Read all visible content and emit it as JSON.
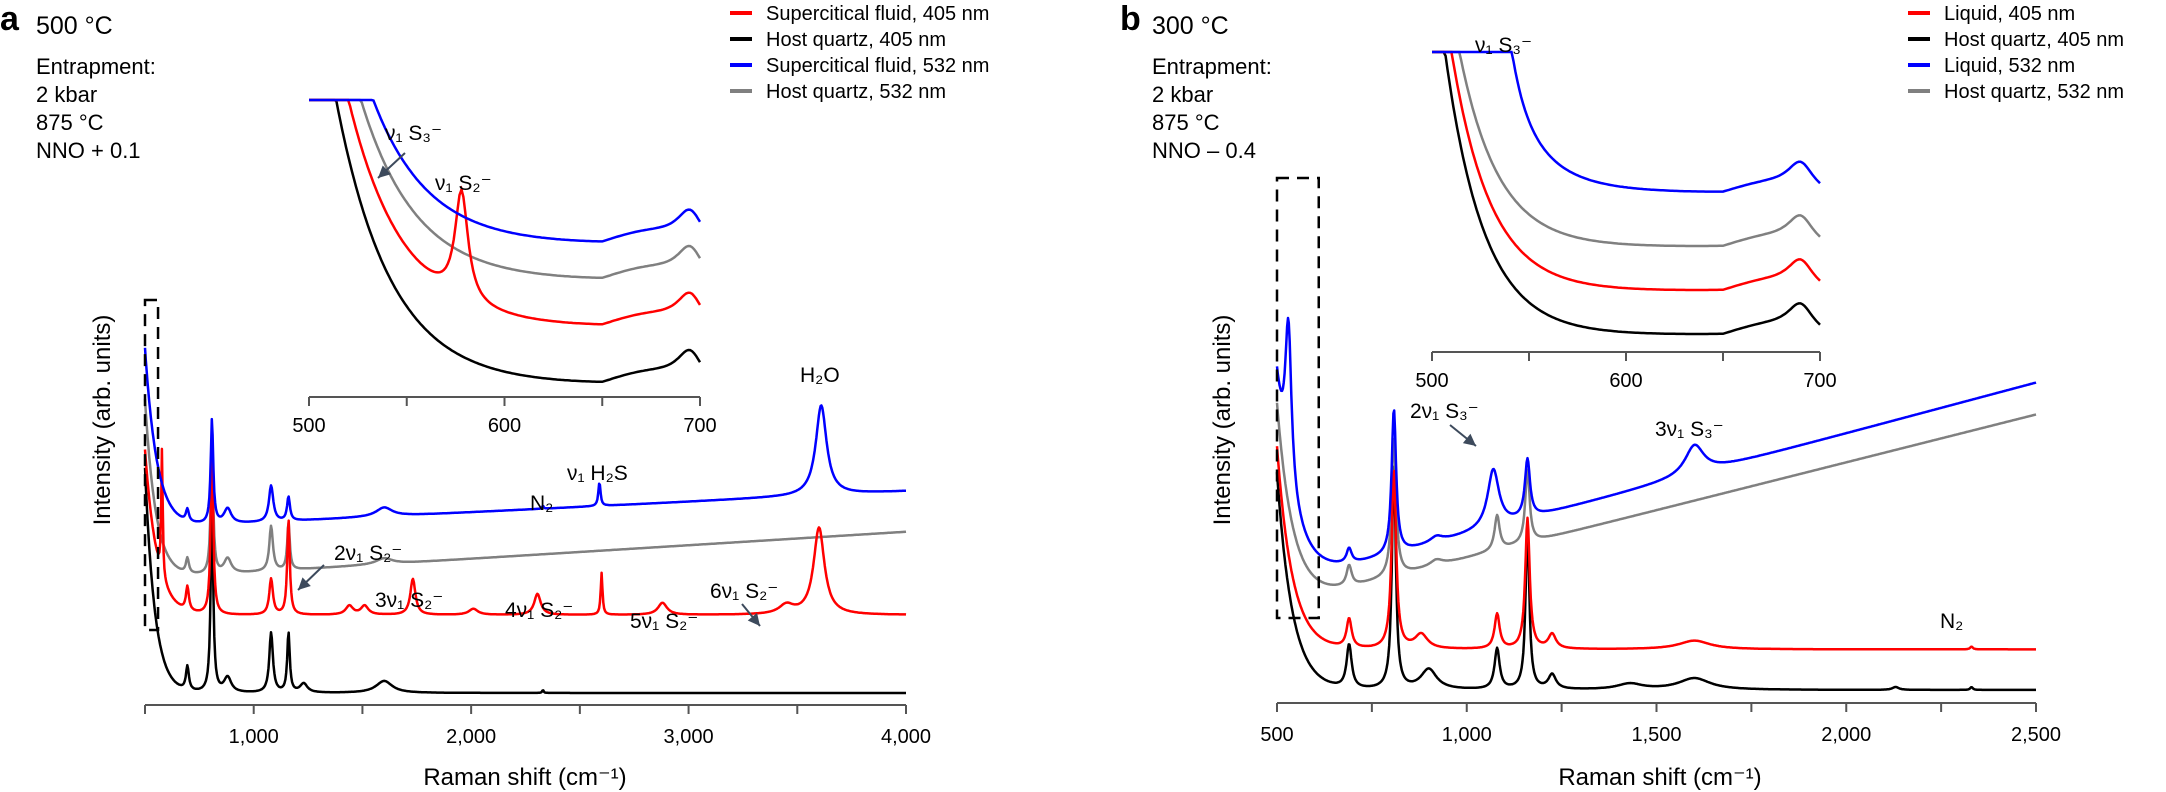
{
  "chart_data": [
    {
      "panel": "a",
      "type": "line",
      "title": "500 °C",
      "conditions": [
        "Entrapment:",
        "2 kbar",
        "875 °C",
        "NNO + 0.1"
      ],
      "xlabel": "Raman shift (cm⁻¹)",
      "ylabel": "Intensity (arb. units)",
      "xlim": [
        500,
        4000
      ],
      "xticks": [
        1000,
        2000,
        3000,
        4000
      ],
      "xtick_labels": [
        "1,000",
        "2,000",
        "3,000",
        "4,000"
      ],
      "minor_xticks": [
        500,
        1500,
        2500,
        3500
      ],
      "grid": false,
      "legend_position": "top-right",
      "series": [
        {
          "name": "Supercitical fluid, 405 nm",
          "color": "#ff0000",
          "offset": 0.26,
          "slope": 0.0,
          "base_amp": 0.55,
          "base_decay": 55,
          "peaks": [
            [
              578,
              0.42,
              4
            ],
            [
              695,
              0.08,
              8
            ],
            [
              808,
              0.55,
              7
            ],
            [
              1080,
              0.12,
              10
            ],
            [
              1160,
              0.32,
              7
            ],
            [
              1440,
              0.03,
              20
            ],
            [
              1510,
              0.03,
              20
            ],
            [
              1732,
              0.12,
              14
            ],
            [
              2010,
              0.02,
              25
            ],
            [
              2305,
              0.07,
              18
            ],
            [
              2600,
              0.14,
              5
            ],
            [
              2880,
              0.04,
              25
            ],
            [
              3450,
              0.03,
              40
            ],
            [
              3600,
              0.29,
              30
            ]
          ]
        },
        {
          "name": "Host quartz, 405 nm",
          "color": "#000000",
          "offset": 0.0,
          "slope": 0.0,
          "base_amp": 0.75,
          "base_decay": 45,
          "peaks": [
            [
              695,
              0.08,
              8
            ],
            [
              808,
              0.62,
              7
            ],
            [
              880,
              0.05,
              20
            ],
            [
              1080,
              0.2,
              10
            ],
            [
              1160,
              0.2,
              7
            ],
            [
              1230,
              0.03,
              20
            ],
            [
              1600,
              0.04,
              45
            ],
            [
              2330,
              0.01,
              4
            ]
          ]
        },
        {
          "name": "Supercitical fluid, 532 nm",
          "color": "#0000ff",
          "offset": 0.55,
          "slope": 3.5e-05,
          "base_amp": 0.6,
          "base_decay": 55,
          "peaks": [
            [
              695,
              0.04,
              8
            ],
            [
              808,
              0.35,
              7
            ],
            [
              880,
              0.05,
              20
            ],
            [
              1080,
              0.12,
              12
            ],
            [
              1160,
              0.08,
              8
            ],
            [
              1600,
              0.03,
              45
            ],
            [
              2330,
              0.01,
              4
            ],
            [
              2590,
              0.08,
              6
            ],
            [
              3610,
              0.3,
              30
            ]
          ]
        },
        {
          "name": "Host quartz, 532 nm",
          "color": "#808080",
          "offset": 0.38,
          "slope": 4.5e-05,
          "base_amp": 0.6,
          "base_decay": 50,
          "peaks": [
            [
              695,
              0.05,
              8
            ],
            [
              808,
              0.42,
              7
            ],
            [
              880,
              0.05,
              20
            ],
            [
              1080,
              0.15,
              10
            ],
            [
              1160,
              0.16,
              7
            ],
            [
              1600,
              0.02,
              45
            ]
          ]
        }
      ],
      "annotations": [
        {
          "label": "H₂O",
          "x": 3610
        },
        {
          "label": "ν₁ H₂S",
          "x": 2590
        },
        {
          "label": "N₂",
          "x": 2330
        },
        {
          "label": "2ν₁ S₂⁻",
          "x": 1160
        },
        {
          "label": "3ν₁ S₂⁻",
          "x": 1732
        },
        {
          "label": "4ν₁ S₂⁻",
          "x": 2305
        },
        {
          "label": "5ν₁ S₂⁻",
          "x": 2880
        },
        {
          "label": "6ν₁ S₂⁻",
          "x": 3450
        }
      ],
      "inset": {
        "xlim": [
          500,
          700
        ],
        "xticks": [
          500,
          600,
          700
        ],
        "xtick_labels": [
          "500",
          "600",
          "700"
        ],
        "minor_xticks": [
          550,
          650
        ],
        "highlight_box_x": [
          500,
          560
        ],
        "annotations": [
          {
            "label": "ν₁ S₃⁻",
            "x": 530
          },
          {
            "label": "ν₁ S₂⁻",
            "x": 578
          }
        ]
      }
    },
    {
      "panel": "b",
      "type": "line",
      "title": "300 °C",
      "conditions": [
        "Entrapment:",
        "2 kbar",
        "875 °C",
        "NNO – 0.4"
      ],
      "xlabel": "Raman shift (cm⁻¹)",
      "ylabel": "Intensity (arb. units)",
      "xlim": [
        500,
        2500
      ],
      "xticks": [
        500,
        1000,
        1500,
        2000,
        2500
      ],
      "xtick_labels": [
        "500",
        "1,000",
        "1,500",
        "2,000",
        "2,500"
      ],
      "minor_xticks": [
        750,
        1250,
        1750,
        2250
      ],
      "grid": false,
      "legend_position": "top-right",
      "series": [
        {
          "name": "Liquid, 405 nm",
          "color": "#ff0000",
          "offset": 0.14,
          "slope": 0.0,
          "base_amp": 0.7,
          "base_decay": 40,
          "peaks": [
            [
              690,
              0.1,
              8
            ],
            [
              808,
              0.62,
              7
            ],
            [
              880,
              0.05,
              20
            ],
            [
              1080,
              0.12,
              8
            ],
            [
              1160,
              0.45,
              7
            ],
            [
              1225,
              0.05,
              12
            ],
            [
              1600,
              0.03,
              50
            ],
            [
              2330,
              0.01,
              4
            ]
          ]
        },
        {
          "name": "Host quartz, 405 nm",
          "color": "#000000",
          "offset": 0.0,
          "slope": 0.0,
          "base_amp": 0.75,
          "base_decay": 40,
          "peaks": [
            [
              690,
              0.15,
              8
            ],
            [
              808,
              0.78,
              6
            ],
            [
              900,
              0.07,
              25
            ],
            [
              1080,
              0.14,
              8
            ],
            [
              1160,
              0.55,
              6
            ],
            [
              1225,
              0.05,
              12
            ],
            [
              1430,
              0.02,
              40
            ],
            [
              1600,
              0.04,
              50
            ],
            [
              2130,
              0.01,
              10
            ],
            [
              2330,
              0.01,
              4
            ]
          ]
        },
        {
          "name": "Liquid, 532 nm",
          "color": "#0000ff",
          "offset": 0.36,
          "slope": 0.00035,
          "base_amp": 0.7,
          "base_decay": 45,
          "peaks": [
            [
              530,
              0.55,
              10
            ],
            [
              690,
              0.05,
              8
            ],
            [
              808,
              0.5,
              7
            ],
            [
              920,
              0.02,
              20
            ],
            [
              1070,
              0.2,
              18
            ],
            [
              1160,
              0.2,
              8
            ],
            [
              1600,
              0.1,
              30
            ]
          ]
        },
        {
          "name": "Host quartz, 532 nm",
          "color": "#808080",
          "offset": 0.29,
          "slope": 0.00033,
          "base_amp": 0.7,
          "base_decay": 42,
          "peaks": [
            [
              690,
              0.07,
              8
            ],
            [
              808,
              0.48,
              7
            ],
            [
              920,
              0.02,
              20
            ],
            [
              1080,
              0.12,
              8
            ],
            [
              1160,
              0.25,
              7
            ]
          ]
        }
      ],
      "annotations": [
        {
          "label": "2ν₁ S₃⁻",
          "x": 1070
        },
        {
          "label": "3ν₁ S₃⁻",
          "x": 1600
        },
        {
          "label": "N₂",
          "x": 2330
        }
      ],
      "inset": {
        "xlim": [
          500,
          700
        ],
        "xticks": [
          500,
          600,
          700
        ],
        "xtick_labels": [
          "500",
          "600",
          "700"
        ],
        "minor_xticks": [
          550,
          650
        ],
        "highlight_box_x": [
          500,
          610
        ],
        "annotations": [
          {
            "label": "ν₁ S₃⁻",
            "x": 530
          }
        ]
      }
    }
  ]
}
